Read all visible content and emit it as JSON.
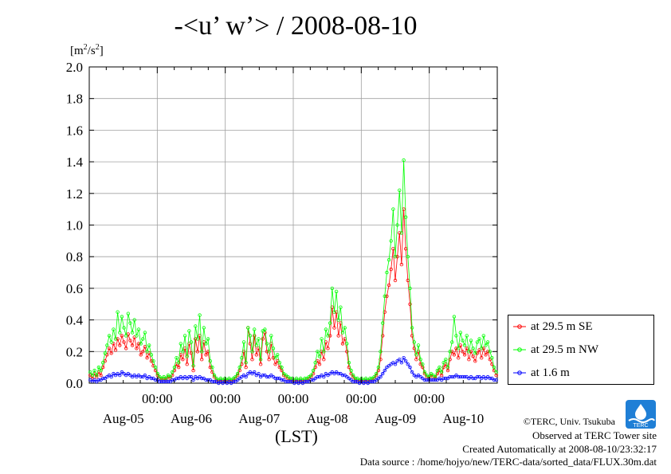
{
  "chart_data": {
    "type": "line",
    "title": "-<u’ w’> / 2008-08-10",
    "ylabel": "[m2/s2]",
    "xlabel": "(LST)",
    "ylim": [
      0,
      2.0
    ],
    "xlim_hours": [
      0,
      144
    ],
    "yticks": [
      "0.0",
      "0.2",
      "0.4",
      "0.6",
      "0.8",
      "1.0",
      "1.2",
      "1.4",
      "1.6",
      "1.8",
      "2.0"
    ],
    "xticks_time": [
      "00:00",
      "00:00",
      "00:00",
      "00:00",
      "00:00"
    ],
    "xticks_date": [
      "Aug-05",
      "Aug-06",
      "Aug-07",
      "Aug-08",
      "Aug-09",
      "Aug-10"
    ],
    "grid": true,
    "legend_position": "right",
    "series": [
      {
        "name": "at 29.5 m SE",
        "color": "#ff0000",
        "values": [
          0.05,
          0.03,
          0.06,
          0.04,
          0.07,
          0.05,
          0.1,
          0.14,
          0.18,
          0.22,
          0.19,
          0.25,
          0.21,
          0.28,
          0.24,
          0.3,
          0.26,
          0.22,
          0.31,
          0.27,
          0.24,
          0.29,
          0.22,
          0.25,
          0.18,
          0.2,
          0.23,
          0.16,
          0.19,
          0.14,
          0.11,
          0.08,
          0.05,
          0.03,
          0.02,
          0.03,
          0.02,
          0.04,
          0.03,
          0.05,
          0.08,
          0.12,
          0.1,
          0.18,
          0.15,
          0.22,
          0.12,
          0.25,
          0.19,
          0.08,
          0.28,
          0.2,
          0.3,
          0.15,
          0.26,
          0.18,
          0.2,
          0.1,
          0.07,
          0.04,
          0.02,
          0.01,
          0.02,
          0.01,
          0.02,
          0.01,
          0.02,
          0.01,
          0.02,
          0.03,
          0.05,
          0.08,
          0.12,
          0.2,
          0.1,
          0.35,
          0.25,
          0.15,
          0.3,
          0.18,
          0.22,
          0.12,
          0.28,
          0.32,
          0.2,
          0.15,
          0.25,
          0.16,
          0.12,
          0.14,
          0.1,
          0.08,
          0.05,
          0.04,
          0.03,
          0.02,
          0.02,
          0.01,
          0.02,
          0.01,
          0.02,
          0.01,
          0.02,
          0.02,
          0.03,
          0.04,
          0.06,
          0.1,
          0.14,
          0.12,
          0.2,
          0.15,
          0.26,
          0.22,
          0.3,
          0.48,
          0.35,
          0.45,
          0.3,
          0.38,
          0.25,
          0.28,
          0.2,
          0.1,
          0.06,
          0.04,
          0.02,
          0.02,
          0.01,
          0.02,
          0.01,
          0.02,
          0.01,
          0.02,
          0.02,
          0.03,
          0.05,
          0.08,
          0.15,
          0.3,
          0.45,
          0.55,
          0.62,
          0.72,
          0.85,
          0.65,
          0.8,
          0.95,
          0.75,
          1.1,
          0.85,
          0.65,
          0.5,
          0.3,
          0.22,
          0.15,
          0.2,
          0.12,
          0.1,
          0.06,
          0.04,
          0.03,
          0.05,
          0.04,
          0.03,
          0.06,
          0.08,
          0.05,
          0.1,
          0.12,
          0.08,
          0.15,
          0.2,
          0.18,
          0.22,
          0.16,
          0.24,
          0.2,
          0.18,
          0.22,
          0.15,
          0.2,
          0.17,
          0.14,
          0.19,
          0.21,
          0.16,
          0.22,
          0.18,
          0.2,
          0.15,
          0.12,
          0.08,
          0.05
        ]
      },
      {
        "name": "at 29.5 m NW",
        "color": "#00ff00",
        "values": [
          0.07,
          0.05,
          0.08,
          0.05,
          0.1,
          0.08,
          0.13,
          0.19,
          0.24,
          0.3,
          0.26,
          0.34,
          0.28,
          0.45,
          0.32,
          0.42,
          0.35,
          0.3,
          0.44,
          0.38,
          0.32,
          0.4,
          0.3,
          0.34,
          0.25,
          0.28,
          0.32,
          0.2,
          0.24,
          0.18,
          0.14,
          0.1,
          0.06,
          0.04,
          0.03,
          0.04,
          0.03,
          0.05,
          0.04,
          0.07,
          0.1,
          0.16,
          0.13,
          0.25,
          0.2,
          0.3,
          0.17,
          0.33,
          0.26,
          0.11,
          0.36,
          0.28,
          0.43,
          0.2,
          0.35,
          0.25,
          0.28,
          0.14,
          0.1,
          0.05,
          0.03,
          0.02,
          0.03,
          0.02,
          0.03,
          0.02,
          0.03,
          0.02,
          0.03,
          0.04,
          0.06,
          0.1,
          0.16,
          0.26,
          0.13,
          0.35,
          0.3,
          0.2,
          0.34,
          0.24,
          0.28,
          0.15,
          0.33,
          0.34,
          0.25,
          0.2,
          0.3,
          0.22,
          0.16,
          0.18,
          0.13,
          0.1,
          0.06,
          0.05,
          0.04,
          0.03,
          0.03,
          0.02,
          0.03,
          0.02,
          0.03,
          0.02,
          0.03,
          0.03,
          0.04,
          0.05,
          0.08,
          0.13,
          0.2,
          0.17,
          0.28,
          0.2,
          0.34,
          0.3,
          0.38,
          0.6,
          0.45,
          0.58,
          0.4,
          0.48,
          0.32,
          0.35,
          0.25,
          0.13,
          0.08,
          0.05,
          0.03,
          0.03,
          0.02,
          0.03,
          0.02,
          0.03,
          0.02,
          0.03,
          0.03,
          0.04,
          0.06,
          0.1,
          0.2,
          0.38,
          0.55,
          0.7,
          0.78,
          0.9,
          1.1,
          0.8,
          1.0,
          1.22,
          0.95,
          1.41,
          1.05,
          0.8,
          0.6,
          0.35,
          0.26,
          0.18,
          0.24,
          0.15,
          0.12,
          0.07,
          0.05,
          0.04,
          0.06,
          0.05,
          0.04,
          0.08,
          0.1,
          0.07,
          0.13,
          0.15,
          0.1,
          0.2,
          0.26,
          0.42,
          0.3,
          0.22,
          0.32,
          0.27,
          0.24,
          0.3,
          0.2,
          0.27,
          0.22,
          0.19,
          0.26,
          0.28,
          0.22,
          0.3,
          0.24,
          0.26,
          0.2,
          0.16,
          0.1,
          0.07
        ]
      },
      {
        "name": "at 1.6 m",
        "color": "#0000ff",
        "values": [
          0.02,
          0.01,
          0.02,
          0.01,
          0.02,
          0.02,
          0.03,
          0.03,
          0.04,
          0.05,
          0.04,
          0.06,
          0.05,
          0.06,
          0.05,
          0.07,
          0.06,
          0.05,
          0.06,
          0.05,
          0.04,
          0.05,
          0.04,
          0.05,
          0.04,
          0.04,
          0.05,
          0.03,
          0.04,
          0.03,
          0.03,
          0.02,
          0.02,
          0.01,
          0.01,
          0.01,
          0.01,
          0.01,
          0.01,
          0.02,
          0.02,
          0.03,
          0.03,
          0.04,
          0.03,
          0.04,
          0.03,
          0.04,
          0.04,
          0.02,
          0.04,
          0.03,
          0.04,
          0.03,
          0.03,
          0.02,
          0.02,
          0.02,
          0.01,
          0.01,
          0.01,
          0.0,
          0.01,
          0.0,
          0.01,
          0.0,
          0.01,
          0.0,
          0.01,
          0.01,
          0.02,
          0.03,
          0.04,
          0.05,
          0.04,
          0.06,
          0.07,
          0.06,
          0.07,
          0.05,
          0.06,
          0.04,
          0.05,
          0.05,
          0.04,
          0.04,
          0.05,
          0.04,
          0.03,
          0.03,
          0.03,
          0.02,
          0.02,
          0.01,
          0.01,
          0.01,
          0.01,
          0.0,
          0.01,
          0.0,
          0.01,
          0.0,
          0.01,
          0.01,
          0.01,
          0.02,
          0.02,
          0.03,
          0.04,
          0.04,
          0.05,
          0.04,
          0.06,
          0.05,
          0.06,
          0.07,
          0.06,
          0.07,
          0.06,
          0.06,
          0.05,
          0.05,
          0.04,
          0.03,
          0.02,
          0.01,
          0.01,
          0.01,
          0.0,
          0.01,
          0.0,
          0.01,
          0.0,
          0.01,
          0.01,
          0.01,
          0.02,
          0.03,
          0.04,
          0.06,
          0.08,
          0.1,
          0.11,
          0.12,
          0.13,
          0.12,
          0.14,
          0.15,
          0.13,
          0.16,
          0.14,
          0.12,
          0.1,
          0.07,
          0.05,
          0.04,
          0.05,
          0.04,
          0.03,
          0.02,
          0.02,
          0.02,
          0.02,
          0.02,
          0.02,
          0.02,
          0.03,
          0.02,
          0.03,
          0.03,
          0.03,
          0.04,
          0.04,
          0.04,
          0.05,
          0.04,
          0.04,
          0.04,
          0.04,
          0.04,
          0.03,
          0.04,
          0.03,
          0.03,
          0.04,
          0.04,
          0.03,
          0.04,
          0.03,
          0.04,
          0.03,
          0.03,
          0.02,
          0.02
        ]
      }
    ]
  },
  "credits": {
    "copyright": "©TERC, Univ. Tsukuba",
    "site": "Observed at TERC Tower site",
    "created": "Created Automatically at 2008-08-10/23:32:17",
    "source": "Data source : /home/hojyo/new/TERC-data/sorted_data/FLUX.30m.dat"
  },
  "logo_text": "TERC"
}
